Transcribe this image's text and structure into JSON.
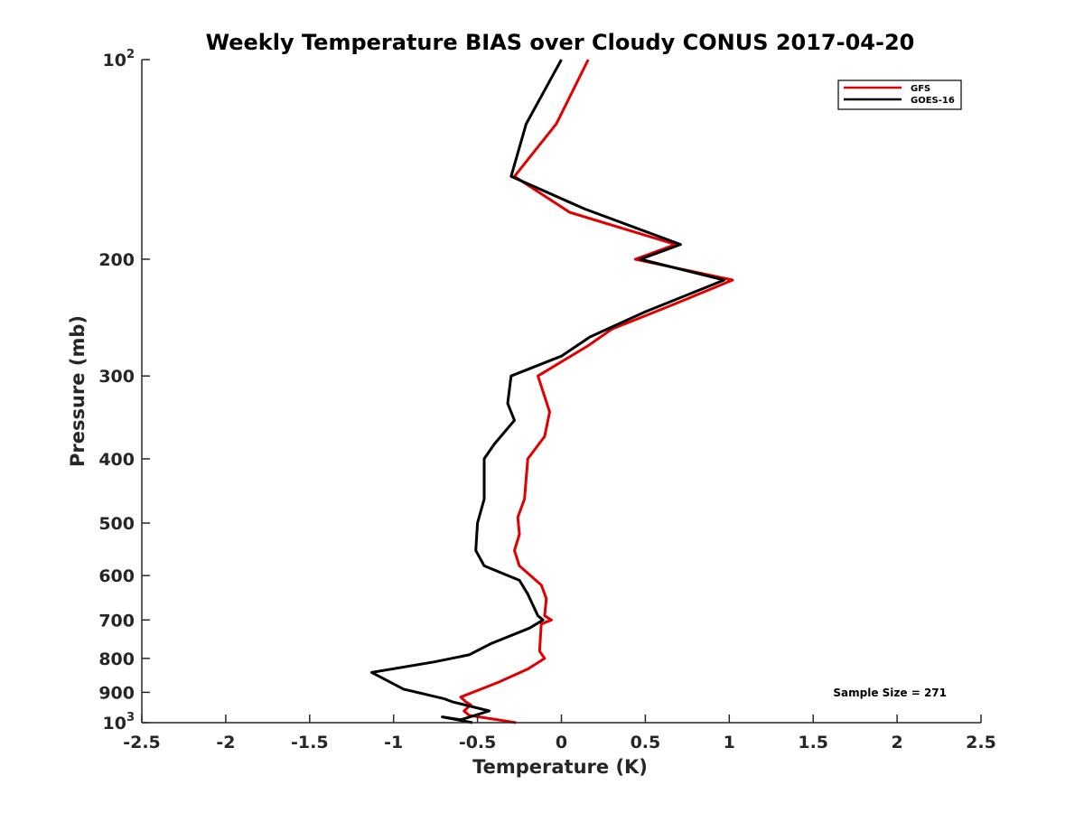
{
  "chart_data": {
    "type": "line",
    "title": "Weekly Temperature BIAS over Cloudy CONUS 2017-04-20",
    "xlabel": "Temperature (K)",
    "ylabel": "Pressure (mb)",
    "xlim": [
      -2.5,
      2.5
    ],
    "ylim": [
      100,
      1000
    ],
    "y_scale": "log",
    "y_reversed": true,
    "grid": false,
    "legend_position": "top-right",
    "x_ticks": [
      -2.5,
      -2,
      -1.5,
      -1,
      -0.5,
      0,
      0.5,
      1,
      1.5,
      2,
      2.5
    ],
    "x_tick_labels": [
      "-2.5",
      "-2",
      "-1.5",
      "-1",
      "-0.5",
      "0",
      "0.5",
      "1",
      "1.5",
      "2",
      "2.5"
    ],
    "y_ticks": [
      {
        "value": 100,
        "base": "10",
        "sup": "2"
      },
      {
        "value": 200,
        "label": "200"
      },
      {
        "value": 300,
        "label": "300"
      },
      {
        "value": 400,
        "label": "400"
      },
      {
        "value": 500,
        "label": "500"
      },
      {
        "value": 600,
        "label": "600"
      },
      {
        "value": 700,
        "label": "700"
      },
      {
        "value": 800,
        "label": "800"
      },
      {
        "value": 900,
        "label": "900"
      },
      {
        "value": 1000,
        "base": "10",
        "sup": "3"
      }
    ],
    "annotation": "Sample Size = 271",
    "series": [
      {
        "name": "GFS",
        "color": "#e00000",
        "points": [
          [
            0.16,
            100
          ],
          [
            -0.03,
            125
          ],
          [
            -0.28,
            150
          ],
          [
            0.05,
            170
          ],
          [
            0.68,
            190
          ],
          [
            0.44,
            200
          ],
          [
            1.02,
            215
          ],
          [
            0.65,
            235
          ],
          [
            0.3,
            255
          ],
          [
            0.16,
            270
          ],
          [
            -0.14,
            300
          ],
          [
            -0.07,
            340
          ],
          [
            -0.1,
            370
          ],
          [
            -0.2,
            400
          ],
          [
            -0.22,
            460
          ],
          [
            -0.26,
            490
          ],
          [
            -0.25,
            520
          ],
          [
            -0.28,
            550
          ],
          [
            -0.25,
            580
          ],
          [
            -0.12,
            620
          ],
          [
            -0.09,
            650
          ],
          [
            -0.1,
            690
          ],
          [
            -0.06,
            700
          ],
          [
            -0.12,
            710
          ],
          [
            -0.13,
            780
          ],
          [
            -0.1,
            800
          ],
          [
            -0.2,
            830
          ],
          [
            -0.38,
            870
          ],
          [
            -0.6,
            915
          ],
          [
            -0.57,
            930
          ],
          [
            -0.54,
            940
          ],
          [
            -0.58,
            960
          ],
          [
            -0.55,
            975
          ],
          [
            -0.27,
            1000
          ]
        ]
      },
      {
        "name": "GOES-16",
        "color": "#000000",
        "points": [
          [
            0.0,
            100
          ],
          [
            -0.21,
            125
          ],
          [
            -0.3,
            150
          ],
          [
            0.14,
            168
          ],
          [
            0.71,
            190
          ],
          [
            0.47,
            200
          ],
          [
            0.97,
            215
          ],
          [
            0.5,
            240
          ],
          [
            0.17,
            262
          ],
          [
            0.0,
            280
          ],
          [
            -0.3,
            300
          ],
          [
            -0.32,
            330
          ],
          [
            -0.28,
            350
          ],
          [
            -0.4,
            380
          ],
          [
            -0.46,
            400
          ],
          [
            -0.46,
            460
          ],
          [
            -0.5,
            500
          ],
          [
            -0.51,
            550
          ],
          [
            -0.46,
            580
          ],
          [
            -0.25,
            610
          ],
          [
            -0.2,
            640
          ],
          [
            -0.14,
            690
          ],
          [
            -0.11,
            700
          ],
          [
            -0.19,
            720
          ],
          [
            -0.42,
            760
          ],
          [
            -0.55,
            790
          ],
          [
            -0.76,
            810
          ],
          [
            -1.13,
            840
          ],
          [
            -0.94,
            890
          ],
          [
            -0.7,
            920
          ],
          [
            -0.65,
            930
          ],
          [
            -0.43,
            960
          ],
          [
            -0.6,
            990
          ],
          [
            -0.71,
            980
          ],
          [
            -0.53,
            1000
          ]
        ]
      }
    ]
  }
}
